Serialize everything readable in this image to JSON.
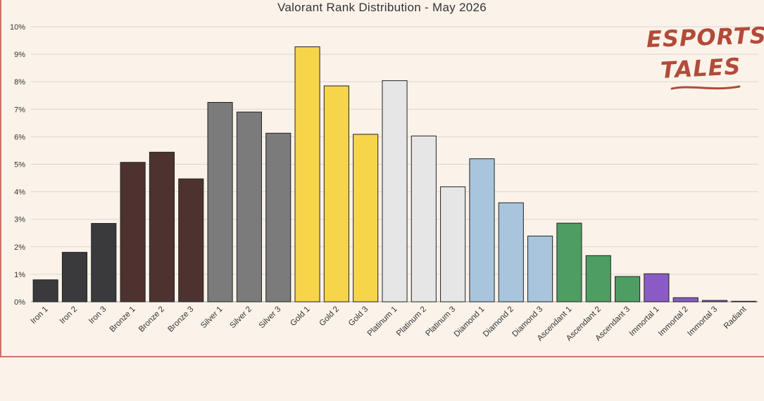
{
  "chart_data": {
    "type": "bar",
    "title": "Valorant Rank Distribution - May 2026",
    "categories": [
      "Iron 1",
      "Iron 2",
      "Iron 3",
      "Bronze 1",
      "Bronze 2",
      "Bronze 3",
      "Silver 1",
      "Silver 2",
      "Silver 3",
      "Gold 1",
      "Gold 2",
      "Gold 3",
      "Platinum 1",
      "Platinum 2",
      "Platinum 3",
      "Diamond 1",
      "Diamond 2",
      "Diamond 3",
      "Ascendant 1",
      "Ascendant 2",
      "Ascendant 3",
      "Immortal 1",
      "Immortal 2",
      "Immortal 3",
      "Radiant"
    ],
    "values": [
      0.8,
      1.8,
      2.85,
      5.07,
      5.44,
      4.47,
      7.25,
      6.9,
      6.13,
      9.27,
      7.85,
      6.09,
      8.04,
      6.03,
      4.18,
      5.2,
      3.6,
      2.39,
      2.86,
      1.68,
      0.92,
      1.02,
      0.15,
      0.05,
      0.02
    ],
    "colors": [
      "#3a3a3d",
      "#3a3a3d",
      "#3a3a3d",
      "#4e3230",
      "#4e3230",
      "#4e3230",
      "#7b7b7b",
      "#7b7b7b",
      "#7b7b7b",
      "#f7d54a",
      "#f7d54a",
      "#f7d54a",
      "#e6e6e6",
      "#e6e6e6",
      "#e6e6e6",
      "#a9c5de",
      "#a9c5de",
      "#a9c5de",
      "#4e9d63",
      "#4e9d63",
      "#4e9d63",
      "#8a5bc4",
      "#8a5bc4",
      "#8a5bc4",
      "#e6e6e6"
    ],
    "yticks": [
      "0%",
      "1%",
      "2%",
      "3%",
      "4%",
      "5%",
      "6%",
      "7%",
      "8%",
      "9%",
      "10%"
    ],
    "ylim": [
      0,
      10
    ],
    "xlabel": "",
    "ylabel": "",
    "grid": true,
    "legend": "none"
  },
  "logo": {
    "line1": "ESPORTS",
    "line2": "TALES"
  }
}
